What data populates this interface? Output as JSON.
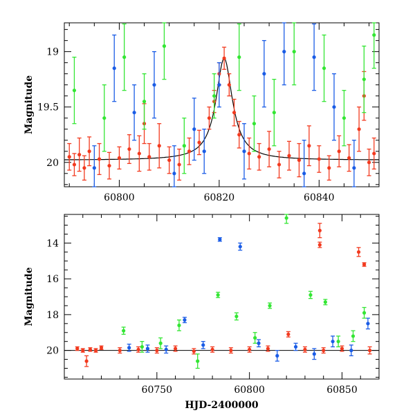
{
  "chart_data": [
    {
      "type": "scatter",
      "panel": "top",
      "title": "",
      "xlabel": "",
      "ylabel": "Magnitude",
      "xlim": [
        60789,
        60852
      ],
      "ylim": [
        20.22,
        18.74
      ],
      "y_inverted": true,
      "x_ticks": [
        60800,
        60820,
        60840
      ],
      "y_ticks": [
        19,
        19.5,
        20
      ],
      "colors": {
        "blue": "#1a5ce6",
        "green": "#33e633",
        "red": "#f23a1f",
        "model": "#000000"
      },
      "model_curve": {
        "description_free": true,
        "peak_x": 60821,
        "peak_y": 19.06,
        "baseline_y": 19.98
      },
      "series": [
        {
          "color_key": "red",
          "points": [
            {
              "x": 60790,
              "y": 19.95,
              "e": 0.12
            },
            {
              "x": 60791,
              "y": 20.02,
              "e": 0.1
            },
            {
              "x": 60792,
              "y": 19.93,
              "e": 0.15
            },
            {
              "x": 60793,
              "y": 20.05,
              "e": 0.11
            },
            {
              "x": 60794,
              "y": 19.9,
              "e": 0.13
            },
            {
              "x": 60796,
              "y": 19.97,
              "e": 0.14
            },
            {
              "x": 60798,
              "y": 20.03,
              "e": 0.12
            },
            {
              "x": 60800,
              "y": 19.96,
              "e": 0.1
            },
            {
              "x": 60802,
              "y": 19.88,
              "e": 0.13
            },
            {
              "x": 60804,
              "y": 19.92,
              "e": 0.16
            },
            {
              "x": 60805,
              "y": 19.65,
              "e": 0.18
            },
            {
              "x": 60806,
              "y": 19.95,
              "e": 0.12
            },
            {
              "x": 60808,
              "y": 19.85,
              "e": 0.2
            },
            {
              "x": 60810,
              "y": 19.98,
              "e": 0.12
            },
            {
              "x": 60812,
              "y": 20.02,
              "e": 0.14
            },
            {
              "x": 60814,
              "y": 19.9,
              "e": 0.12
            },
            {
              "x": 60816,
              "y": 19.82,
              "e": 0.11
            },
            {
              "x": 60818,
              "y": 19.6,
              "e": 0.1
            },
            {
              "x": 60819,
              "y": 19.45,
              "e": 0.1
            },
            {
              "x": 60820,
              "y": 19.2,
              "e": 0.1
            },
            {
              "x": 60821,
              "y": 19.06,
              "e": 0.1
            },
            {
              "x": 60822,
              "y": 19.3,
              "e": 0.1
            },
            {
              "x": 60823,
              "y": 19.55,
              "e": 0.12
            },
            {
              "x": 60824,
              "y": 19.75,
              "e": 0.12
            },
            {
              "x": 60826,
              "y": 19.92,
              "e": 0.14
            },
            {
              "x": 60828,
              "y": 19.95,
              "e": 0.12
            },
            {
              "x": 60830,
              "y": 19.88,
              "e": 0.16
            },
            {
              "x": 60832,
              "y": 20.02,
              "e": 0.12
            },
            {
              "x": 60834,
              "y": 19.94,
              "e": 0.13
            },
            {
              "x": 60836,
              "y": 19.98,
              "e": 0.15
            },
            {
              "x": 60838,
              "y": 19.85,
              "e": 0.18
            },
            {
              "x": 60840,
              "y": 19.97,
              "e": 0.12
            },
            {
              "x": 60842,
              "y": 20.05,
              "e": 0.11
            },
            {
              "x": 60844,
              "y": 19.9,
              "e": 0.14
            },
            {
              "x": 60846,
              "y": 19.96,
              "e": 0.12
            },
            {
              "x": 60848,
              "y": 19.7,
              "e": 0.2
            },
            {
              "x": 60849,
              "y": 19.4,
              "e": 0.22
            },
            {
              "x": 60850,
              "y": 20.0,
              "e": 0.12
            },
            {
              "x": 60851,
              "y": 19.92,
              "e": 0.14
            }
          ]
        },
        {
          "color_key": "blue",
          "points": [
            {
              "x": 60795,
              "y": 20.05,
              "e": 0.2
            },
            {
              "x": 60799,
              "y": 19.15,
              "e": 0.3
            },
            {
              "x": 60803,
              "y": 19.55,
              "e": 0.25
            },
            {
              "x": 60807,
              "y": 19.3,
              "e": 0.3
            },
            {
              "x": 60811,
              "y": 20.1,
              "e": 0.25
            },
            {
              "x": 60815,
              "y": 19.7,
              "e": 0.28
            },
            {
              "x": 60817,
              "y": 19.9,
              "e": 0.2
            },
            {
              "x": 60820,
              "y": 19.3,
              "e": 0.2
            },
            {
              "x": 60825,
              "y": 19.9,
              "e": 0.25
            },
            {
              "x": 60829,
              "y": 19.2,
              "e": 0.3
            },
            {
              "x": 60833,
              "y": 19.0,
              "e": 0.3
            },
            {
              "x": 60837,
              "y": 20.1,
              "e": 0.3
            },
            {
              "x": 60839,
              "y": 19.05,
              "e": 0.3
            },
            {
              "x": 60843,
              "y": 19.5,
              "e": 0.3
            },
            {
              "x": 60847,
              "y": 20.05,
              "e": 0.25
            }
          ]
        },
        {
          "color_key": "green",
          "points": [
            {
              "x": 60791,
              "y": 19.35,
              "e": 0.3
            },
            {
              "x": 60797,
              "y": 19.6,
              "e": 0.3
            },
            {
              "x": 60801,
              "y": 19.05,
              "e": 0.3
            },
            {
              "x": 60805,
              "y": 19.45,
              "e": 0.25
            },
            {
              "x": 60809,
              "y": 18.95,
              "e": 0.3
            },
            {
              "x": 60813,
              "y": 19.85,
              "e": 0.25
            },
            {
              "x": 60819,
              "y": 19.4,
              "e": 0.2
            },
            {
              "x": 60824,
              "y": 19.05,
              "e": 0.3
            },
            {
              "x": 60827,
              "y": 19.65,
              "e": 0.25
            },
            {
              "x": 60831,
              "y": 19.55,
              "e": 0.3
            },
            {
              "x": 60835,
              "y": 19.0,
              "e": 0.3
            },
            {
              "x": 60841,
              "y": 19.15,
              "e": 0.3
            },
            {
              "x": 60845,
              "y": 19.6,
              "e": 0.25
            },
            {
              "x": 60849,
              "y": 19.25,
              "e": 0.3
            },
            {
              "x": 60851,
              "y": 18.85,
              "e": 0.3
            }
          ]
        }
      ]
    },
    {
      "type": "scatter",
      "panel": "bottom",
      "title": "",
      "xlabel": "HJD-2400000",
      "ylabel": "Magnitude",
      "xlim": [
        60700,
        60870
      ],
      "ylim": [
        21.6,
        12.4
      ],
      "y_inverted": true,
      "x_ticks": [
        60750,
        60800,
        60850
      ],
      "y_ticks": [
        14,
        16,
        18,
        20
      ],
      "colors": {
        "blue": "#1a5ce6",
        "green": "#33e633",
        "red": "#f23a1f",
        "model": "#000000"
      },
      "series": [
        {
          "color_key": "red",
          "points": [
            {
              "x": 60707,
              "y": 19.9,
              "e": 0.1
            },
            {
              "x": 60710,
              "y": 20.0,
              "e": 0.1
            },
            {
              "x": 60712,
              "y": 20.6,
              "e": 0.3
            },
            {
              "x": 60714,
              "y": 19.95,
              "e": 0.1
            },
            {
              "x": 60717,
              "y": 20.0,
              "e": 0.1
            },
            {
              "x": 60720,
              "y": 19.85,
              "e": 0.1
            },
            {
              "x": 60730,
              "y": 20.0,
              "e": 0.15
            },
            {
              "x": 60740,
              "y": 19.95,
              "e": 0.15
            },
            {
              "x": 60750,
              "y": 20.0,
              "e": 0.15
            },
            {
              "x": 60760,
              "y": 19.9,
              "e": 0.15
            },
            {
              "x": 60770,
              "y": 20.05,
              "e": 0.15
            },
            {
              "x": 60780,
              "y": 19.95,
              "e": 0.15
            },
            {
              "x": 60790,
              "y": 20.0,
              "e": 0.15
            },
            {
              "x": 60800,
              "y": 19.95,
              "e": 0.15
            },
            {
              "x": 60810,
              "y": 19.9,
              "e": 0.15
            },
            {
              "x": 60821,
              "y": 19.1,
              "e": 0.15
            },
            {
              "x": 60830,
              "y": 19.95,
              "e": 0.15
            },
            {
              "x": 60838,
              "y": 13.3,
              "e": 0.4
            },
            {
              "x": 60838,
              "y": 14.1,
              "e": 0.15
            },
            {
              "x": 60840,
              "y": 20.0,
              "e": 0.15
            },
            {
              "x": 60850,
              "y": 19.9,
              "e": 0.15
            },
            {
              "x": 60859,
              "y": 14.5,
              "e": 0.25
            },
            {
              "x": 60862,
              "y": 15.2,
              "e": 0.1
            },
            {
              "x": 60865,
              "y": 20.0,
              "e": 0.2
            }
          ]
        },
        {
          "color_key": "blue",
          "points": [
            {
              "x": 60735,
              "y": 19.85,
              "e": 0.2
            },
            {
              "x": 60745,
              "y": 19.9,
              "e": 0.2
            },
            {
              "x": 60755,
              "y": 19.95,
              "e": 0.2
            },
            {
              "x": 60765,
              "y": 18.3,
              "e": 0.15
            },
            {
              "x": 60775,
              "y": 19.7,
              "e": 0.2
            },
            {
              "x": 60784,
              "y": 13.8,
              "e": 0.1
            },
            {
              "x": 60795,
              "y": 14.2,
              "e": 0.2
            },
            {
              "x": 60805,
              "y": 19.6,
              "e": 0.2
            },
            {
              "x": 60815,
              "y": 20.3,
              "e": 0.3
            },
            {
              "x": 60825,
              "y": 19.8,
              "e": 0.2
            },
            {
              "x": 60835,
              "y": 20.2,
              "e": 0.3
            },
            {
              "x": 60845,
              "y": 19.5,
              "e": 0.3
            },
            {
              "x": 60855,
              "y": 20.0,
              "e": 0.3
            },
            {
              "x": 60864,
              "y": 18.5,
              "e": 0.3
            }
          ]
        },
        {
          "color_key": "green",
          "points": [
            {
              "x": 60732,
              "y": 18.9,
              "e": 0.2
            },
            {
              "x": 60742,
              "y": 19.8,
              "e": 0.3
            },
            {
              "x": 60752,
              "y": 19.6,
              "e": 0.3
            },
            {
              "x": 60762,
              "y": 18.6,
              "e": 0.3
            },
            {
              "x": 60772,
              "y": 20.6,
              "e": 0.4
            },
            {
              "x": 60783,
              "y": 16.9,
              "e": 0.15
            },
            {
              "x": 60793,
              "y": 18.1,
              "e": 0.2
            },
            {
              "x": 60803,
              "y": 19.3,
              "e": 0.3
            },
            {
              "x": 60811,
              "y": 17.5,
              "e": 0.15
            },
            {
              "x": 60820,
              "y": 12.6,
              "e": 0.3
            },
            {
              "x": 60833,
              "y": 16.9,
              "e": 0.2
            },
            {
              "x": 60841,
              "y": 17.3,
              "e": 0.15
            },
            {
              "x": 60848,
              "y": 19.5,
              "e": 0.3
            },
            {
              "x": 60856,
              "y": 19.2,
              "e": 0.3
            },
            {
              "x": 60862,
              "y": 17.9,
              "e": 0.3
            }
          ]
        }
      ]
    }
  ]
}
